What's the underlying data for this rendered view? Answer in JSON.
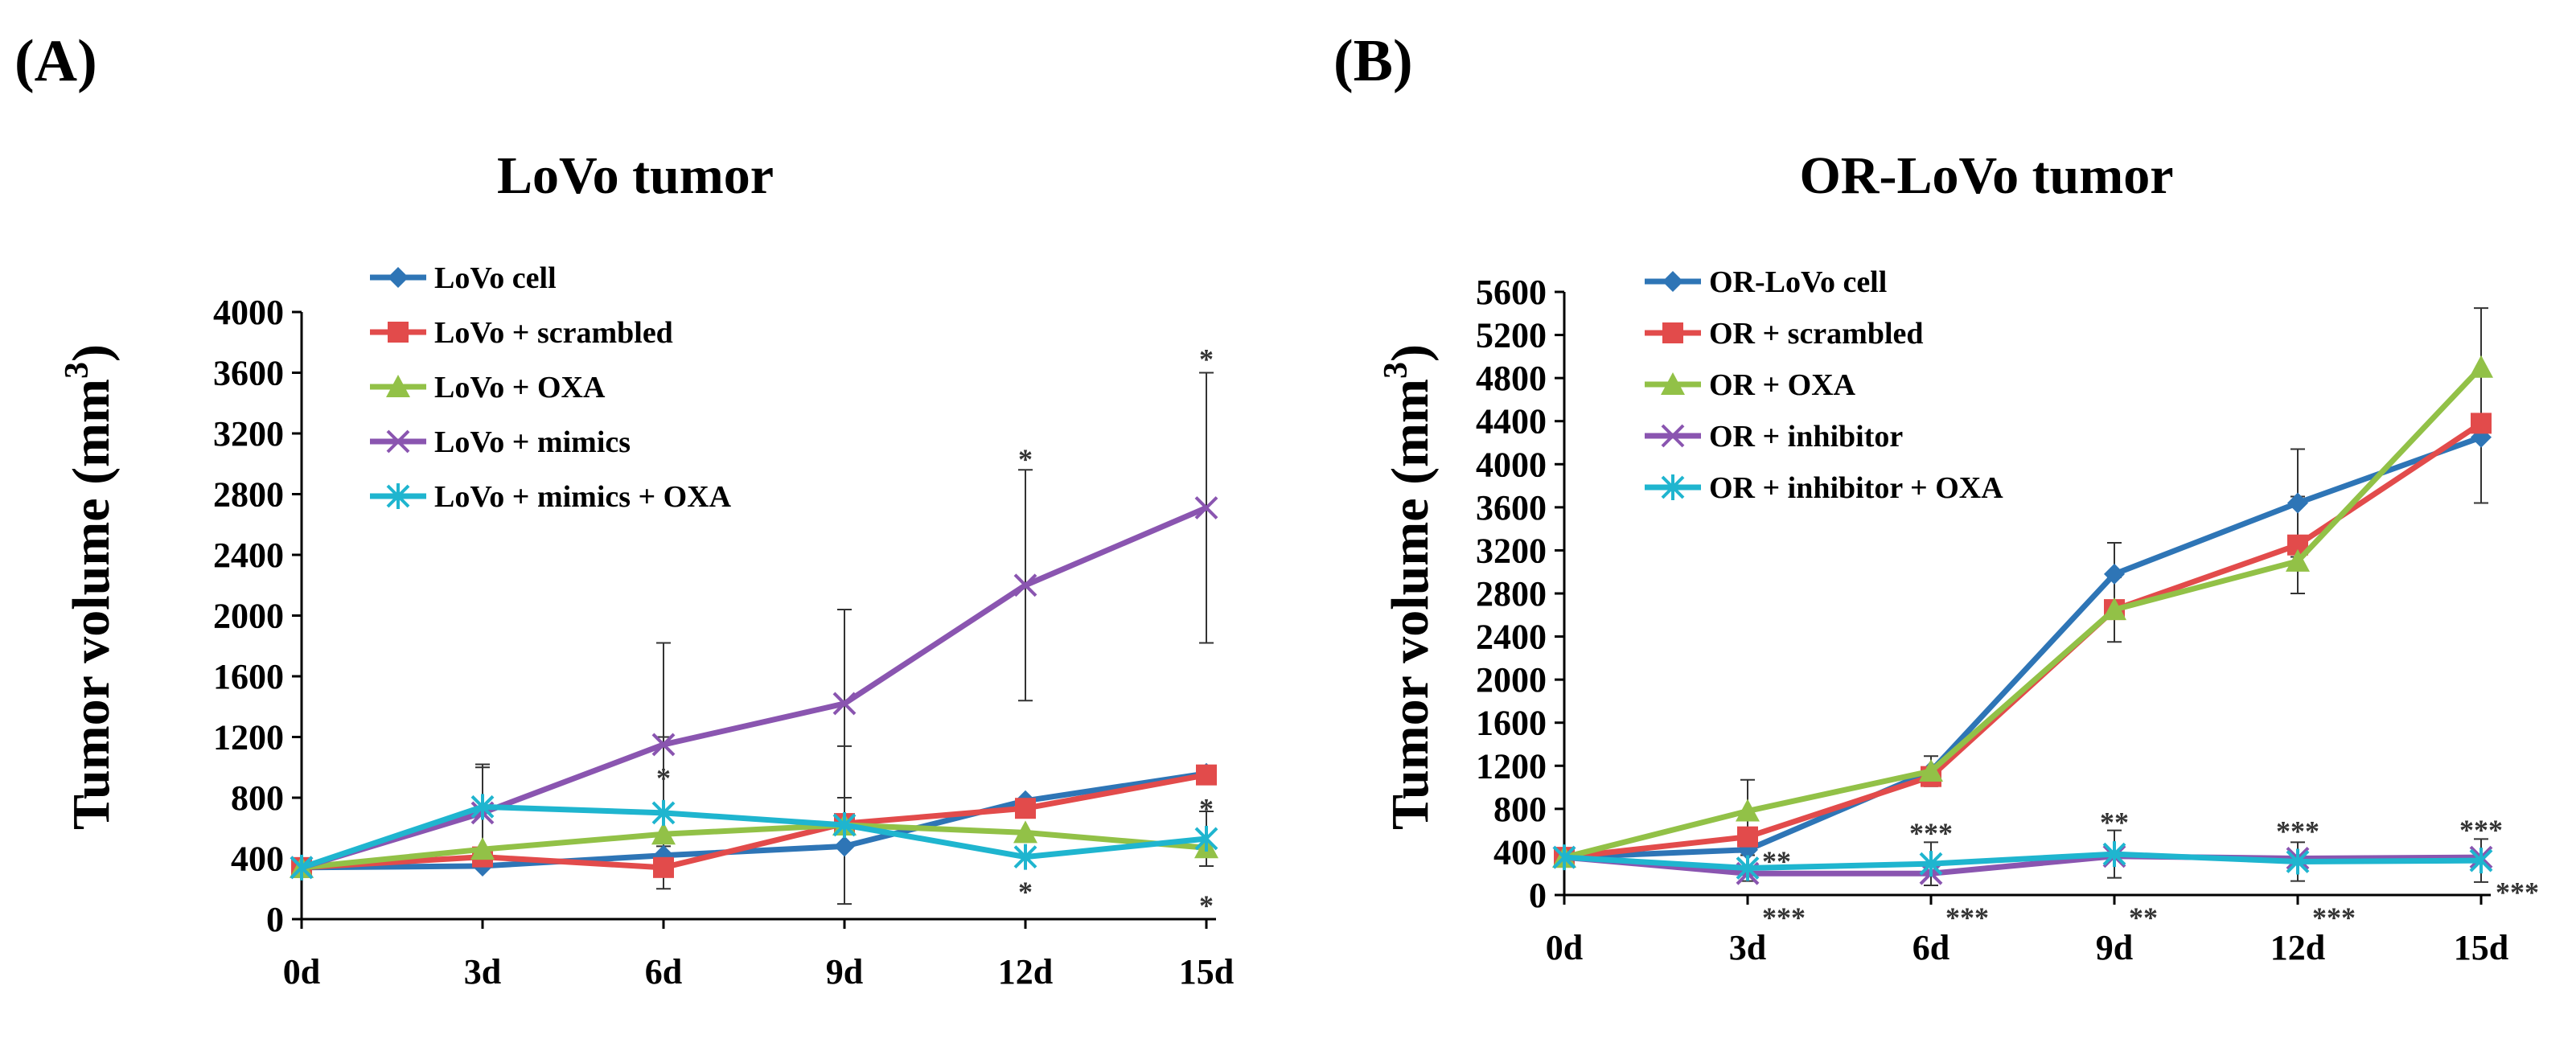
{
  "chart_data": [
    {
      "panel_label": "(A)",
      "type": "line",
      "title": "LoVo tumor",
      "ylabel": "Tumor volume (mm",
      "ylabel_sup": "3",
      "ylabel_end": ")",
      "xlabel": "",
      "categories": [
        "0d",
        "3d",
        "6d",
        "9d",
        "12d",
        "15d"
      ],
      "ylim": [
        0,
        4000
      ],
      "yticks": [
        0,
        400,
        800,
        1200,
        1600,
        2000,
        2400,
        2800,
        3200,
        3600,
        4000
      ],
      "grid": false,
      "legend_position": "top-left",
      "series": [
        {
          "name": "LoVo cell",
          "color": "#2e75b6",
          "marker": "diamond",
          "values": [
            340,
            350,
            420,
            480,
            780,
            960
          ],
          "errors": [
            0,
            0,
            0,
            0,
            0,
            0
          ]
        },
        {
          "name": "LoVo + scrambled",
          "color": "#e24b4b",
          "marker": "square",
          "values": [
            340,
            410,
            340,
            630,
            730,
            950
          ],
          "errors": [
            0,
            0,
            0,
            0,
            0,
            0
          ]
        },
        {
          "name": "LoVo + OXA",
          "color": "#92c147",
          "marker": "triangle",
          "values": [
            340,
            460,
            560,
            620,
            570,
            470
          ],
          "errors": [
            0,
            0,
            0,
            0,
            0,
            0
          ]
        },
        {
          "name": "LoVo + mimics",
          "color": "#8a55b0",
          "marker": "x",
          "values": [
            340,
            700,
            1150,
            1420,
            2200,
            2710
          ],
          "errors": [
            0,
            300,
            670,
            620,
            760,
            890
          ]
        },
        {
          "name": "LoVo + mimics + OXA",
          "color": "#1fb5cf",
          "marker": "star",
          "values": [
            340,
            740,
            700,
            620,
            410,
            530
          ],
          "errors": [
            0,
            280,
            500,
            520,
            0,
            180
          ]
        }
      ],
      "annotations": [
        {
          "text": "*",
          "x": "6d",
          "y": 940
        },
        {
          "text": "*",
          "x": "12d",
          "y": 3040
        },
        {
          "text": "*",
          "x": "12d",
          "y": 190
        },
        {
          "text": "*",
          "x": "15d",
          "y": 3700
        },
        {
          "text": "*",
          "x": "15d",
          "y": 740
        },
        {
          "text": "*",
          "x": "15d",
          "y": 100
        }
      ]
    },
    {
      "panel_label": "(B)",
      "type": "line",
      "title": "OR-LoVo tumor",
      "ylabel": "Tumor volume (mm",
      "ylabel_sup": "3",
      "ylabel_end": ")",
      "xlabel": "",
      "categories": [
        "0d",
        "3d",
        "6d",
        "9d",
        "12d",
        "15d"
      ],
      "ylim": [
        0,
        5600
      ],
      "yticks": [
        0,
        400,
        800,
        1200,
        1600,
        2000,
        2400,
        2800,
        3200,
        3600,
        4000,
        4400,
        4800,
        5200,
        5600
      ],
      "grid": false,
      "legend_position": "top-left",
      "series": [
        {
          "name": "OR-LoVo cell",
          "color": "#2e75b6",
          "marker": "diamond",
          "values": [
            350,
            420,
            1150,
            2980,
            3640,
            4250
          ],
          "errors": [
            0,
            0,
            0,
            290,
            500,
            610
          ]
        },
        {
          "name": "OR + scrambled",
          "color": "#e24b4b",
          "marker": "square",
          "values": [
            350,
            540,
            1100,
            2650,
            3250,
            4380
          ],
          "errors": [
            0,
            0,
            0,
            300,
            450,
            0
          ]
        },
        {
          "name": "OR + OXA",
          "color": "#92c147",
          "marker": "triangle",
          "values": [
            350,
            780,
            1150,
            2650,
            3100,
            4900
          ],
          "errors": [
            0,
            290,
            140,
            0,
            0,
            550
          ]
        },
        {
          "name": "OR + inhibitor",
          "color": "#8a55b0",
          "marker": "x",
          "values": [
            350,
            200,
            200,
            360,
            340,
            350
          ],
          "errors": [
            0,
            0,
            0,
            0,
            0,
            0
          ]
        },
        {
          "name": "OR + inhibitor + OXA",
          "color": "#1fb5cf",
          "marker": "star",
          "values": [
            350,
            250,
            290,
            380,
            310,
            320
          ],
          "errors": [
            0,
            120,
            200,
            220,
            180,
            200
          ]
        }
      ],
      "annotations": [
        {
          "text": "**",
          "x": "3d",
          "y": 330,
          "side": "right"
        },
        {
          "text": "***",
          "x": "3d",
          "y": -40,
          "side": "right"
        },
        {
          "text": "***",
          "x": "6d",
          "y": 590
        },
        {
          "text": "***",
          "x": "6d",
          "y": -40,
          "side": "right"
        },
        {
          "text": "**",
          "x": "9d",
          "y": 690
        },
        {
          "text": "**",
          "x": "9d",
          "y": -40,
          "side": "right"
        },
        {
          "text": "***",
          "x": "12d",
          "y": 610
        },
        {
          "text": "***",
          "x": "12d",
          "y": -40,
          "side": "right"
        },
        {
          "text": "***",
          "x": "15d",
          "y": 620
        },
        {
          "text": "***",
          "x": "15d",
          "y": 40,
          "side": "right"
        }
      ]
    }
  ]
}
